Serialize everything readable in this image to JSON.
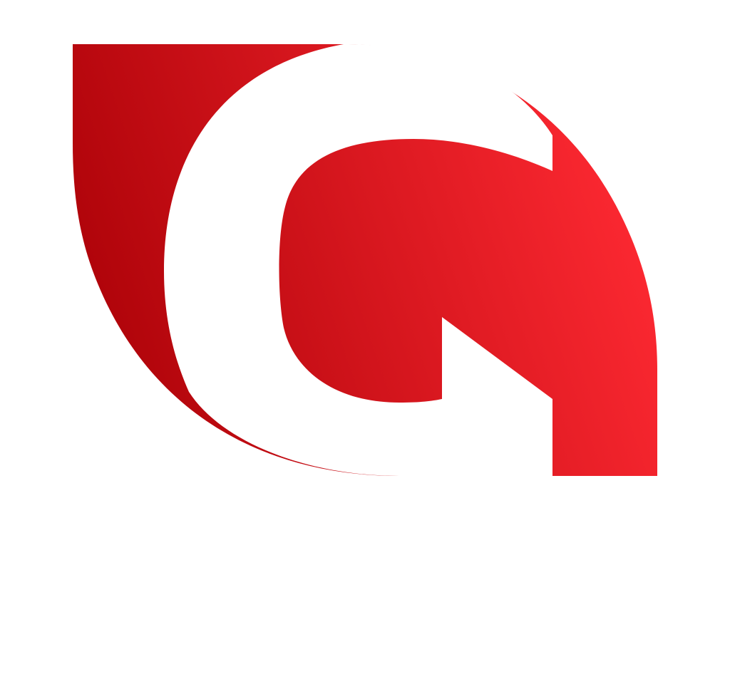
{
  "logo": {
    "name": "G leaf logo",
    "letter": "G",
    "colors": {
      "gradient_start": "#a80006",
      "gradient_end": "#ff2a33",
      "background": "#ffffff",
      "letter_fill": "#ffffff"
    }
  }
}
